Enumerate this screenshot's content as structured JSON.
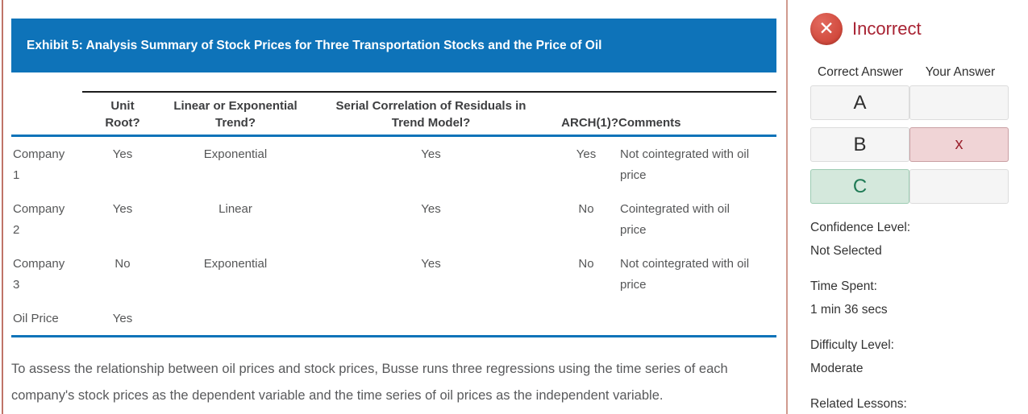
{
  "exhibit": {
    "title": "Exhibit 5: Analysis Summary of Stock Prices for Three Transportation Stocks and the Price of Oil",
    "table": {
      "headers": [
        "",
        "Unit Root?",
        "Linear or Exponential Trend?",
        "Serial Correlation of Residuals in Trend Model?",
        "ARCH(1)?",
        "Comments"
      ],
      "rows": [
        [
          "Company 1",
          "Yes",
          "Exponential",
          "Yes",
          "Yes",
          "Not cointegrated with oil price"
        ],
        [
          "Company 2",
          "Yes",
          "Linear",
          "Yes",
          "No",
          "Cointegrated with oil price"
        ],
        [
          "Company 3",
          "No",
          "Exponential",
          "Yes",
          "No",
          "Not cointegrated with oil price"
        ],
        [
          "Oil Price",
          "Yes",
          "",
          "",
          "",
          ""
        ]
      ]
    },
    "paragraph": "To assess the relationship between oil prices and stock prices, Busse runs three regressions using the time series of each company's stock prices as the dependent variable and the time series of oil prices as the independent variable."
  },
  "result_panel": {
    "status": "Incorrect",
    "status_icon": "x-circle-icon",
    "column_headers": {
      "correct": "Correct Answer",
      "yours": "Your Answer"
    },
    "choices": [
      {
        "letter": "A",
        "your_mark": ""
      },
      {
        "letter": "B",
        "your_mark": "x"
      },
      {
        "letter": "C",
        "your_mark": ""
      }
    ],
    "correct_choice": "C",
    "your_choice": "B",
    "details": [
      {
        "label": "Confidence Level:",
        "value": "Not Selected"
      },
      {
        "label": "Time Spent:",
        "value": "1 min 36 secs"
      },
      {
        "label": "Difficulty Level:",
        "value": "Moderate"
      },
      {
        "label": "Related Lessons:"
      }
    ],
    "colors": {
      "brand_blue": "#0e73b9",
      "incorrect_text": "#a82333",
      "incorrect_icon": "#c93a2d",
      "wrong_cell_bg": "#f0d4d6",
      "wrong_mark": "#9c2430",
      "correct_cell_bg": "#d4e8dc",
      "correct_letter": "#1f7a55"
    }
  }
}
